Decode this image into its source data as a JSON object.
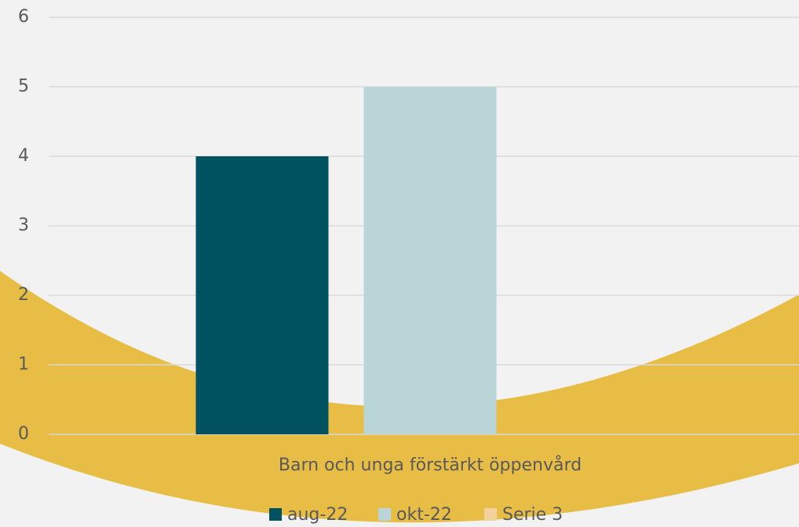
{
  "chart_data": {
    "type": "bar",
    "categories": [
      "Barn och unga förstärkt öppenvård"
    ],
    "series": [
      {
        "name": "aug-22",
        "color": "#005260",
        "values": [
          4
        ]
      },
      {
        "name": "okt-22",
        "color": "#b9d5d8",
        "values": [
          5
        ]
      },
      {
        "name": "Serie 3",
        "color": "#f3d29e",
        "values": [
          null
        ]
      }
    ],
    "ylim": [
      0,
      6
    ],
    "yticks": [
      0,
      1,
      2,
      3,
      4,
      5,
      6
    ],
    "grid": true,
    "legend": "bottom"
  }
}
